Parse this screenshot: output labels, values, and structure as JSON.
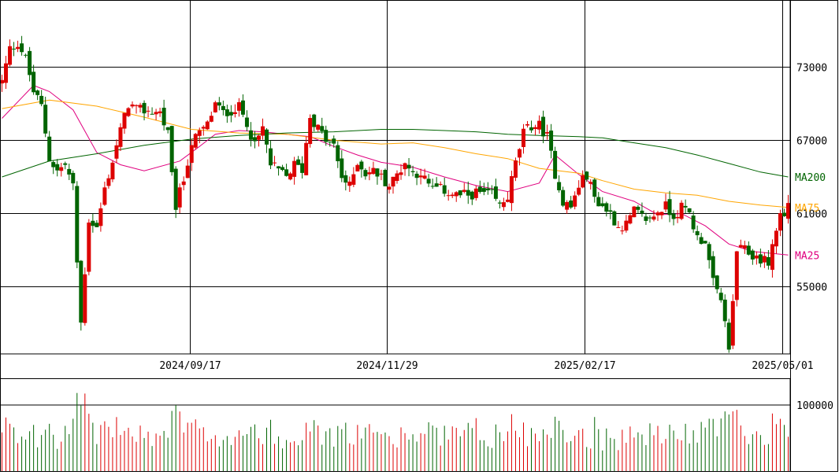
{
  "chart_data": {
    "type": "candlestick",
    "price_axis": {
      "ticks": [
        55000,
        61000,
        67000,
        73000
      ],
      "range": [
        49500,
        78500
      ]
    },
    "volume_axis": {
      "ticks": [
        100000
      ],
      "range": [
        0,
        140000
      ]
    },
    "date_ticks": [
      {
        "index": 48,
        "label": "2024/09/17"
      },
      {
        "index": 98,
        "label": "2024/11/29"
      },
      {
        "index": 148,
        "label": "2025/02/17"
      },
      {
        "index": 198,
        "label": "2025/05/01"
      }
    ],
    "legend": [
      {
        "label": "MA200",
        "color": "#006400",
        "value": 64000
      },
      {
        "label": "MA75",
        "color": "#ffa500",
        "value": 61500
      },
      {
        "label": "MA25",
        "color": "#e0007f",
        "value": 57600
      }
    ],
    "colors": {
      "up": "#dd0000",
      "down": "#006400",
      "grid": "#000000"
    },
    "series": {
      "ma25": [
        [
          0,
          68800
        ],
        [
          8,
          71500
        ],
        [
          12,
          71000
        ],
        [
          18,
          69500
        ],
        [
          24,
          66000
        ],
        [
          30,
          65000
        ],
        [
          36,
          64500
        ],
        [
          45,
          65300
        ],
        [
          50,
          66500
        ],
        [
          54,
          67500
        ],
        [
          60,
          67800
        ],
        [
          66,
          67700
        ],
        [
          72,
          67500
        ],
        [
          78,
          67300
        ],
        [
          84,
          66500
        ],
        [
          90,
          65800
        ],
        [
          96,
          65200
        ],
        [
          104,
          64800
        ],
        [
          112,
          64000
        ],
        [
          120,
          63300
        ],
        [
          128,
          62800
        ],
        [
          136,
          63500
        ],
        [
          140,
          65800
        ],
        [
          146,
          64200
        ],
        [
          152,
          62800
        ],
        [
          160,
          62000
        ],
        [
          166,
          60900
        ],
        [
          172,
          61000
        ],
        [
          178,
          60000
        ],
        [
          184,
          58500
        ],
        [
          190,
          57900
        ],
        [
          196,
          57700
        ],
        [
          199,
          57600
        ]
      ],
      "ma75": [
        [
          0,
          69600
        ],
        [
          12,
          70300
        ],
        [
          24,
          69800
        ],
        [
          36,
          68900
        ],
        [
          48,
          67900
        ],
        [
          60,
          67600
        ],
        [
          72,
          67500
        ],
        [
          84,
          67000
        ],
        [
          96,
          66700
        ],
        [
          104,
          66800
        ],
        [
          112,
          66400
        ],
        [
          120,
          65900
        ],
        [
          128,
          65500
        ],
        [
          136,
          64700
        ],
        [
          146,
          64300
        ],
        [
          152,
          63700
        ],
        [
          160,
          63000
        ],
        [
          168,
          62700
        ],
        [
          176,
          62500
        ],
        [
          184,
          62000
        ],
        [
          192,
          61700
        ],
        [
          199,
          61500
        ]
      ],
      "ma200": [
        [
          0,
          64000
        ],
        [
          12,
          65300
        ],
        [
          24,
          65900
        ],
        [
          36,
          66600
        ],
        [
          48,
          67100
        ],
        [
          60,
          67400
        ],
        [
          72,
          67600
        ],
        [
          84,
          67700
        ],
        [
          96,
          67900
        ],
        [
          104,
          67900
        ],
        [
          112,
          67800
        ],
        [
          120,
          67700
        ],
        [
          128,
          67500
        ],
        [
          136,
          67400
        ],
        [
          146,
          67300
        ],
        [
          152,
          67200
        ],
        [
          160,
          66800
        ],
        [
          168,
          66400
        ],
        [
          176,
          65800
        ],
        [
          184,
          65100
        ],
        [
          192,
          64400
        ],
        [
          199,
          64000
        ]
      ]
    }
  }
}
